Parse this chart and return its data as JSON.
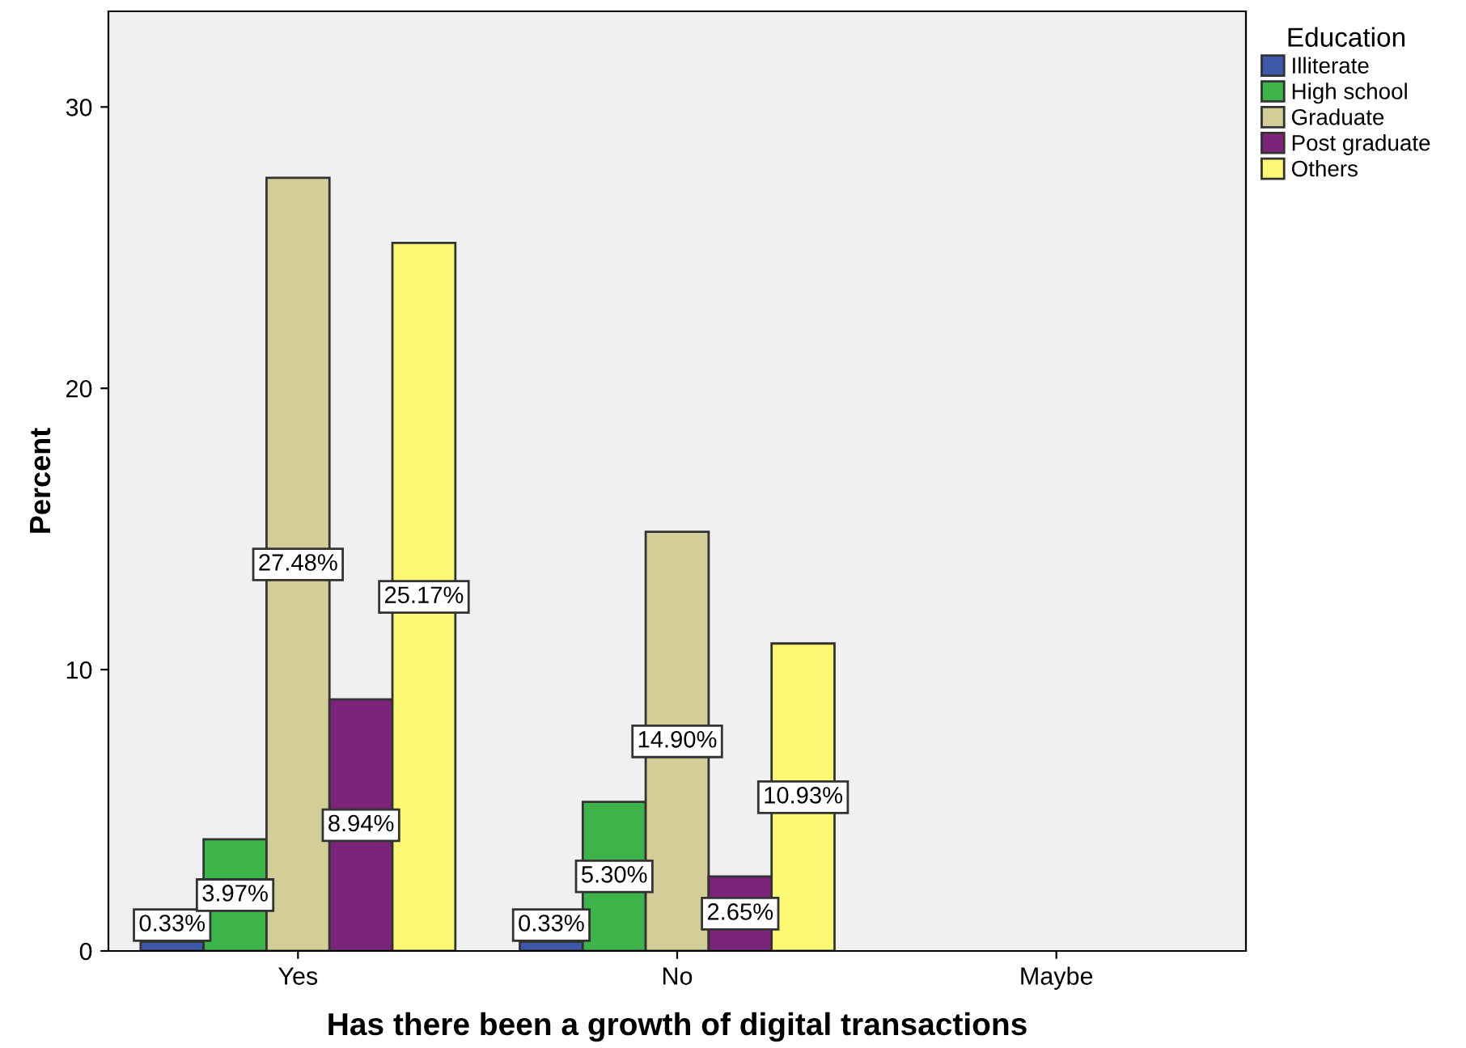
{
  "chart_data": {
    "type": "bar",
    "xlabel": "Has there been a growth of digital transactions",
    "ylabel": "Percent",
    "legend_title": "Education",
    "legend": "right",
    "categories": [
      "Yes",
      "No",
      "Maybe"
    ],
    "series": [
      {
        "name": "Illiterate",
        "color": "#3e58ac",
        "values": [
          0.33,
          0.33,
          null
        ],
        "value_labels": [
          "0.33%",
          "0.33%",
          null
        ]
      },
      {
        "name": "High school",
        "color": "#3cb44a",
        "values": [
          3.97,
          5.3,
          null
        ],
        "value_labels": [
          "3.97%",
          "5.30%",
          null
        ]
      },
      {
        "name": "Graduate",
        "color": "#d3ce97",
        "values": [
          27.48,
          14.9,
          null
        ],
        "value_labels": [
          "27.48%",
          "14.90%",
          null
        ]
      },
      {
        "name": "Post graduate",
        "color": "#7b2479",
        "values": [
          8.94,
          2.65,
          null
        ],
        "value_labels": [
          "8.94%",
          "2.65%",
          null
        ]
      },
      {
        "name": "Others",
        "color": "#fbf873",
        "values": [
          25.17,
          10.93,
          null
        ],
        "value_labels": [
          "25.17%",
          "10.93%",
          null
        ]
      }
    ],
    "ylim": [
      0,
      33.4
    ],
    "yticks": [
      0,
      10,
      20,
      30
    ],
    "grid": false
  }
}
